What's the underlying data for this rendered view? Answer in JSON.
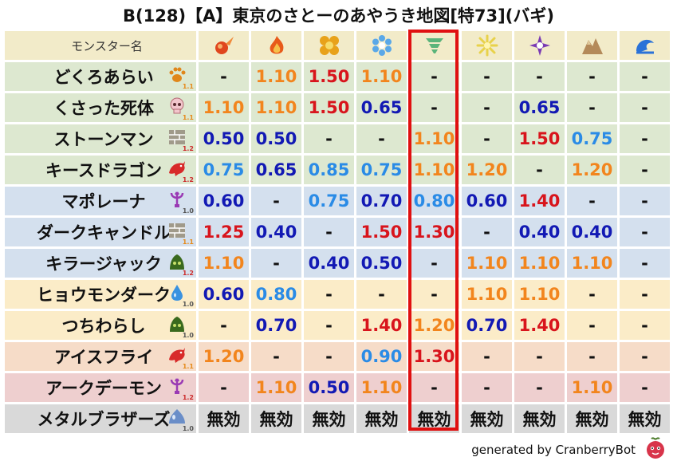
{
  "title": "B(128)【A】東京のさとーのあやうき地図[特73](バギ)",
  "header": {
    "name_label": "モンスター名",
    "elements": [
      {
        "name": "fire-ball-icon",
        "color": "#e0461e"
      },
      {
        "name": "flame-icon",
        "color": "#e85a1a"
      },
      {
        "name": "explosion-icon",
        "color": "#e8a21a"
      },
      {
        "name": "ice-icon",
        "color": "#5aa8e8"
      },
      {
        "name": "tornado-icon",
        "color": "#5ab47a"
      },
      {
        "name": "lightning-icon",
        "color": "#e8d24a"
      },
      {
        "name": "darkness-icon",
        "color": "#7a3ab4"
      },
      {
        "name": "rock-icon",
        "color": "#b48a5a"
      },
      {
        "name": "wave-icon",
        "color": "#2a72d8"
      }
    ]
  },
  "row_colors": {
    "green": "#dde8d0",
    "blue": "#d4e0ee",
    "yellow": "#fbecc8",
    "peach": "#f6dcc8",
    "pink": "#eecfcf",
    "gray": "#d9d9d9",
    "header": "#f2ebc9"
  },
  "rows": [
    {
      "name": "どくろあらい",
      "icon": "paw-icon",
      "mult": "1.1",
      "mult_color": "orange",
      "bg": "green",
      "values": [
        "-",
        "1.10",
        "1.50",
        "1.10",
        "-",
        "-",
        "-",
        "-",
        "-"
      ],
      "colors": [
        "dash",
        "orange",
        "darkred",
        "orange",
        "dash",
        "dash",
        "dash",
        "dash",
        "dash"
      ]
    },
    {
      "name": "くさった死体",
      "icon": "skull-icon",
      "mult": "1.1",
      "mult_color": "orange",
      "bg": "green",
      "values": [
        "1.10",
        "1.10",
        "1.50",
        "0.65",
        "-",
        "-",
        "0.65",
        "-",
        "-"
      ],
      "colors": [
        "orange",
        "orange",
        "darkred",
        "navy",
        "dash",
        "dash",
        "navy",
        "dash",
        "dash"
      ]
    },
    {
      "name": "ストーンマン",
      "icon": "stone-block-icon",
      "mult": "1.2",
      "mult_color": "red",
      "bg": "green",
      "values": [
        "0.50",
        "0.50",
        "-",
        "-",
        "1.10",
        "-",
        "1.50",
        "0.75",
        "-"
      ],
      "colors": [
        "navy",
        "navy",
        "dash",
        "dash",
        "orange",
        "dash",
        "darkred",
        "lightblue",
        "dash"
      ]
    },
    {
      "name": "キースドラゴン",
      "icon": "dragon-icon",
      "mult": "1.2",
      "mult_color": "red",
      "bg": "green",
      "values": [
        "0.75",
        "0.65",
        "0.85",
        "0.75",
        "1.10",
        "1.20",
        "-",
        "1.20",
        "-"
      ],
      "colors": [
        "lightblue",
        "navy",
        "lightblue",
        "lightblue",
        "orange",
        "orange",
        "dash",
        "orange",
        "dash"
      ]
    },
    {
      "name": "マポレーナ",
      "icon": "trident-icon",
      "mult": "1.0",
      "mult_color": "gray",
      "bg": "blue",
      "values": [
        "0.60",
        "-",
        "0.75",
        "0.70",
        "0.80",
        "0.60",
        "1.40",
        "-",
        "-"
      ],
      "colors": [
        "navy",
        "dash",
        "lightblue",
        "navy",
        "lightblue",
        "navy",
        "darkred",
        "dash",
        "dash"
      ]
    },
    {
      "name": "ダークキャンドル",
      "icon": "stone-block-icon",
      "mult": "1.1",
      "mult_color": "orange",
      "bg": "blue",
      "values": [
        "1.25",
        "0.40",
        "-",
        "1.50",
        "1.30",
        "-",
        "0.40",
        "0.40",
        "-"
      ],
      "colors": [
        "darkred",
        "navy",
        "dash",
        "darkred",
        "darkred",
        "dash",
        "navy",
        "navy",
        "dash"
      ]
    },
    {
      "name": "キラージャック",
      "icon": "slime-green-icon",
      "mult": "1.2",
      "mult_color": "red",
      "bg": "blue",
      "values": [
        "1.10",
        "-",
        "0.40",
        "0.50",
        "-",
        "1.10",
        "1.10",
        "1.10",
        "-"
      ],
      "colors": [
        "orange",
        "dash",
        "navy",
        "navy",
        "dash",
        "orange",
        "orange",
        "orange",
        "dash"
      ]
    },
    {
      "name": "ヒョウモンダーク",
      "icon": "water-drop-icon",
      "mult": "1.0",
      "mult_color": "gray",
      "bg": "yellow",
      "values": [
        "0.60",
        "0.80",
        "-",
        "-",
        "-",
        "1.10",
        "1.10",
        "-",
        "-"
      ],
      "colors": [
        "navy",
        "lightblue",
        "dash",
        "dash",
        "dash",
        "orange",
        "orange",
        "dash",
        "dash"
      ]
    },
    {
      "name": "つちわらし",
      "icon": "slime-green-icon",
      "mult": "1.0",
      "mult_color": "gray",
      "bg": "yellow",
      "values": [
        "-",
        "0.70",
        "-",
        "1.40",
        "1.20",
        "0.70",
        "1.40",
        "-",
        "-"
      ],
      "colors": [
        "dash",
        "navy",
        "dash",
        "darkred",
        "orange",
        "navy",
        "darkred",
        "dash",
        "dash"
      ]
    },
    {
      "name": "アイスフライ",
      "icon": "dragon-icon",
      "mult": "1.1",
      "mult_color": "orange",
      "bg": "peach",
      "values": [
        "1.20",
        "-",
        "-",
        "0.90",
        "1.30",
        "-",
        "-",
        "-",
        "-"
      ],
      "colors": [
        "orange",
        "dash",
        "dash",
        "lightblue",
        "darkred",
        "dash",
        "dash",
        "dash",
        "dash"
      ]
    },
    {
      "name": "アークデーモン",
      "icon": "trident-icon",
      "mult": "1.2",
      "mult_color": "red",
      "bg": "pink",
      "values": [
        "-",
        "1.10",
        "0.50",
        "1.10",
        "-",
        "-",
        "-",
        "1.10",
        "-"
      ],
      "colors": [
        "dash",
        "orange",
        "navy",
        "orange",
        "dash",
        "dash",
        "dash",
        "orange",
        "dash"
      ]
    },
    {
      "name": "メタルブラザーズ",
      "icon": "metal-slime-icon",
      "mult": "1.0",
      "mult_color": "gray",
      "bg": "gray",
      "values": [
        "無効",
        "無効",
        "無効",
        "無効",
        "無効",
        "無効",
        "無効",
        "無効",
        "無効"
      ],
      "colors": [
        "black",
        "black",
        "black",
        "black",
        "black",
        "black",
        "black",
        "black",
        "black"
      ]
    }
  ],
  "highlighted_column": 4,
  "footer": "generated by CranberryBot"
}
